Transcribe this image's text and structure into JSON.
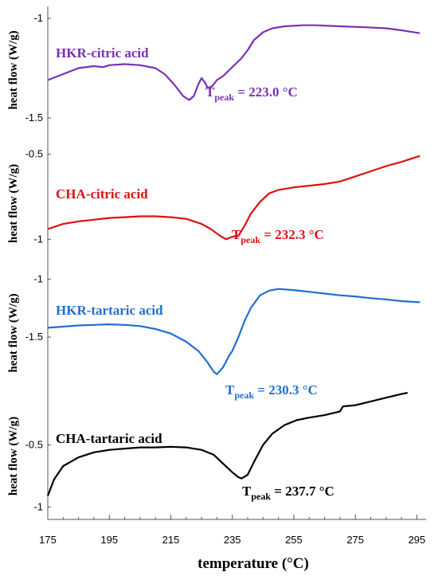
{
  "chart_data": {
    "type": "line",
    "xlabel": "temperature (°C)",
    "xlim": [
      175,
      298
    ],
    "x_ticks": [
      "175",
      "195",
      "215",
      "235",
      "255",
      "275",
      "295"
    ],
    "panels": [
      {
        "ylabel": "heat flow (W/g)",
        "ylim": [
          -1.58,
          -0.94
        ],
        "y_ticks": [
          {
            "v": -1,
            "label": "-1"
          },
          {
            "v": -1.5,
            "label": "-1.5"
          }
        ],
        "series_name": "HKR-citric acid",
        "color": "#7a2fb8",
        "peak": {
          "prefix": "T",
          "sub": "peak",
          "text": " = 223.0 °C"
        },
        "points": [
          [
            175,
            -1.31
          ],
          [
            180,
            -1.28
          ],
          [
            185,
            -1.25
          ],
          [
            190,
            -1.24
          ],
          [
            193,
            -1.245
          ],
          [
            195,
            -1.235
          ],
          [
            200,
            -1.23
          ],
          [
            205,
            -1.235
          ],
          [
            210,
            -1.25
          ],
          [
            213,
            -1.28
          ],
          [
            216,
            -1.33
          ],
          [
            219,
            -1.39
          ],
          [
            221,
            -1.41
          ],
          [
            222.5,
            -1.39
          ],
          [
            224,
            -1.33
          ],
          [
            225,
            -1.3
          ],
          [
            226,
            -1.32
          ],
          [
            227,
            -1.35
          ],
          [
            228.5,
            -1.34
          ],
          [
            230,
            -1.31
          ],
          [
            232,
            -1.29
          ],
          [
            234,
            -1.26
          ],
          [
            236,
            -1.23
          ],
          [
            238,
            -1.2
          ],
          [
            240,
            -1.16
          ],
          [
            242,
            -1.11
          ],
          [
            245,
            -1.07
          ],
          [
            248,
            -1.05
          ],
          [
            252,
            -1.04
          ],
          [
            258,
            -1.035
          ],
          [
            262,
            -1.035
          ],
          [
            270,
            -1.04
          ],
          [
            278,
            -1.045
          ],
          [
            285,
            -1.05
          ],
          [
            290,
            -1.06
          ],
          [
            296,
            -1.075
          ]
        ]
      },
      {
        "ylabel": "heat flow (W/g)",
        "ylim": [
          -1.2,
          -0.38
        ],
        "y_ticks": [
          {
            "v": -0.5,
            "label": "-0.5"
          },
          {
            "v": -1,
            "label": "-1"
          }
        ],
        "series_name": "CHA-citric acid",
        "color": "#e01010",
        "peak": {
          "prefix": "T",
          "sub": "peak",
          "text": " = 232.3 °C"
        },
        "points": [
          [
            175,
            -0.94
          ],
          [
            180,
            -0.91
          ],
          [
            185,
            -0.895
          ],
          [
            190,
            -0.885
          ],
          [
            195,
            -0.875
          ],
          [
            200,
            -0.87
          ],
          [
            205,
            -0.865
          ],
          [
            210,
            -0.865
          ],
          [
            215,
            -0.87
          ],
          [
            220,
            -0.88
          ],
          [
            225,
            -0.91
          ],
          [
            228,
            -0.94
          ],
          [
            231,
            -0.98
          ],
          [
            233,
            -1.0
          ],
          [
            235,
            -0.985
          ],
          [
            237,
            -0.98
          ],
          [
            239,
            -0.92
          ],
          [
            241,
            -0.85
          ],
          [
            244,
            -0.78
          ],
          [
            247,
            -0.73
          ],
          [
            250,
            -0.71
          ],
          [
            255,
            -0.695
          ],
          [
            260,
            -0.685
          ],
          [
            265,
            -0.675
          ],
          [
            270,
            -0.66
          ],
          [
            275,
            -0.63
          ],
          [
            280,
            -0.6
          ],
          [
            285,
            -0.57
          ],
          [
            290,
            -0.545
          ],
          [
            296,
            -0.51
          ]
        ]
      },
      {
        "ylabel": "heat flow (W/g)",
        "ylim": [
          -1.98,
          -0.95
        ],
        "y_ticks": [
          {
            "v": -1,
            "label": "-1"
          },
          {
            "v": -1.5,
            "label": "-1.5"
          }
        ],
        "series_name": "HKR-tartaric acid",
        "color": "#1f6fd0",
        "peak": {
          "prefix": "T",
          "sub": "peak",
          "text": " = 230.3 °C"
        },
        "points": [
          [
            175,
            -1.42
          ],
          [
            180,
            -1.41
          ],
          [
            185,
            -1.4
          ],
          [
            190,
            -1.395
          ],
          [
            195,
            -1.39
          ],
          [
            200,
            -1.395
          ],
          [
            205,
            -1.405
          ],
          [
            210,
            -1.43
          ],
          [
            215,
            -1.47
          ],
          [
            220,
            -1.54
          ],
          [
            224,
            -1.62
          ],
          [
            227,
            -1.72
          ],
          [
            229,
            -1.8
          ],
          [
            230,
            -1.82
          ],
          [
            232,
            -1.76
          ],
          [
            234,
            -1.66
          ],
          [
            235,
            -1.62
          ],
          [
            237,
            -1.5
          ],
          [
            239,
            -1.36
          ],
          [
            241,
            -1.25
          ],
          [
            244,
            -1.14
          ],
          [
            247,
            -1.1
          ],
          [
            250,
            -1.085
          ],
          [
            255,
            -1.095
          ],
          [
            260,
            -1.11
          ],
          [
            265,
            -1.125
          ],
          [
            270,
            -1.14
          ],
          [
            275,
            -1.15
          ],
          [
            280,
            -1.165
          ],
          [
            285,
            -1.175
          ],
          [
            290,
            -1.19
          ],
          [
            296,
            -1.2
          ]
        ]
      },
      {
        "ylabel": "heat flow (W/g)",
        "ylim": [
          -1.1,
          -0.08
        ],
        "y_ticks": [
          {
            "v": -0.5,
            "label": "-0.5"
          },
          {
            "v": -1,
            "label": "-1"
          }
        ],
        "series_name": "CHA-tartaric acid",
        "color": "#000000",
        "peak": {
          "prefix": "T",
          "sub": "peak",
          "text": " = 237.7 °C"
        },
        "points": [
          [
            175,
            -0.91
          ],
          [
            177,
            -0.78
          ],
          [
            180,
            -0.67
          ],
          [
            185,
            -0.6
          ],
          [
            190,
            -0.56
          ],
          [
            195,
            -0.54
          ],
          [
            200,
            -0.53
          ],
          [
            205,
            -0.52
          ],
          [
            210,
            -0.52
          ],
          [
            215,
            -0.515
          ],
          [
            220,
            -0.52
          ],
          [
            225,
            -0.54
          ],
          [
            229,
            -0.58
          ],
          [
            232,
            -0.65
          ],
          [
            235,
            -0.72
          ],
          [
            237,
            -0.76
          ],
          [
            238,
            -0.77
          ],
          [
            240,
            -0.74
          ],
          [
            242,
            -0.64
          ],
          [
            245,
            -0.5
          ],
          [
            248,
            -0.41
          ],
          [
            252,
            -0.34
          ],
          [
            256,
            -0.3
          ],
          [
            260,
            -0.28
          ],
          [
            265,
            -0.26
          ],
          [
            270,
            -0.23
          ],
          [
            271,
            -0.19
          ],
          [
            275,
            -0.18
          ],
          [
            280,
            -0.15
          ],
          [
            285,
            -0.12
          ],
          [
            290,
            -0.09
          ],
          [
            292,
            -0.08
          ]
        ]
      }
    ]
  }
}
